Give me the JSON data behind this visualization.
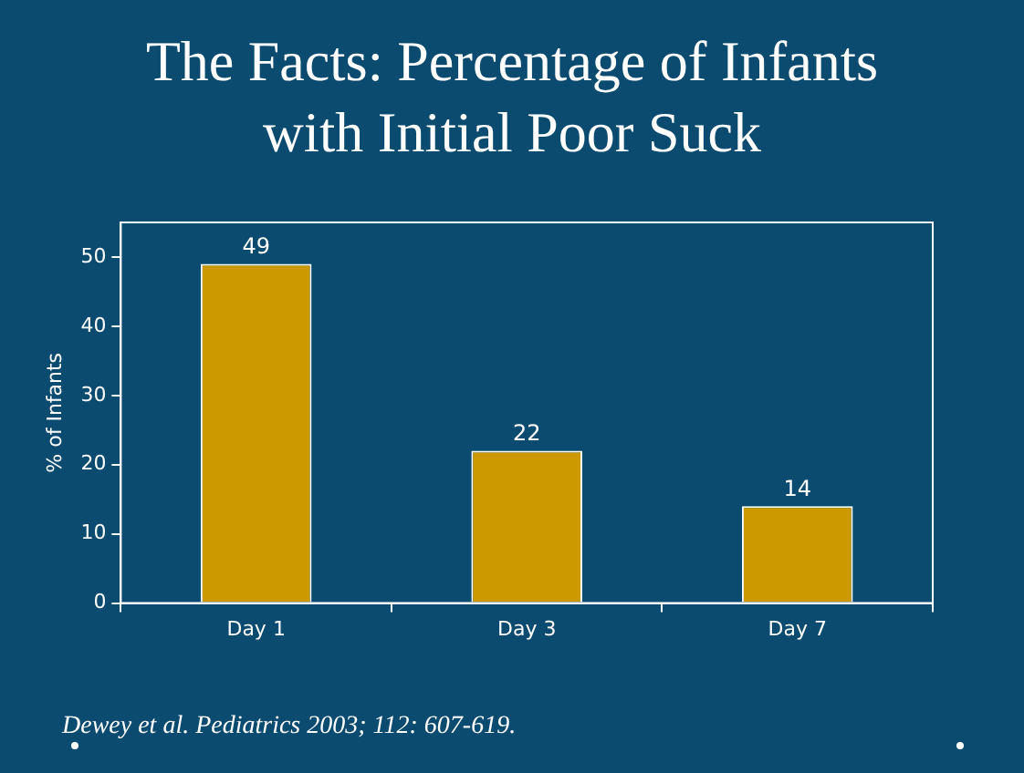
{
  "chart_data": {
    "type": "bar",
    "title": "The Facts: Percentage of Infants with Initial Poor Suck",
    "categories": [
      "Day 1",
      "Day 3",
      "Day 7"
    ],
    "values": [
      49,
      22,
      14
    ],
    "color": "#cc9900",
    "ylabel": "% of Infants",
    "ylim": [
      0,
      55
    ],
    "yticks": [
      0,
      10,
      20,
      30,
      40,
      50
    ],
    "grid": false,
    "legend": false,
    "data_labels": true,
    "annotations": [
      "Dewey et al. Pediatrics 2003; 112: 607-619."
    ]
  }
}
